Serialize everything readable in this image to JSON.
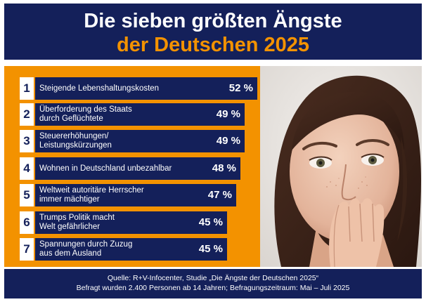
{
  "header": {
    "title_line1": "Die sieben größten Ängste",
    "title_line2": "der Deutschen 2025"
  },
  "chart_data": {
    "type": "bar",
    "categories": [
      "Steigende Lebenshaltungskosten",
      "Überforderung des Staats durch Geflüchtete",
      "Steuererhöhungen/ Leistungskürzungen",
      "Wohnen in Deutschland unbezahlbar",
      "Weltweit autoritäre Herrscher immer mächtiger",
      "Trumps Politik macht Welt gefährlicher",
      "Spannungen durch Zuzug aus dem Ausland"
    ],
    "values": [
      52,
      49,
      49,
      48,
      47,
      45,
      45
    ],
    "ranks": [
      "1",
      "2",
      "3",
      "4",
      "5",
      "6",
      "7"
    ],
    "label_lines": [
      [
        "Steigende Lebenshaltungskosten"
      ],
      [
        "Überforderung des Staats",
        "durch Geflüchtete"
      ],
      [
        "Steuererhöhungen/",
        "Leistungskürzungen"
      ],
      [
        "Wohnen in Deutschland unbezahlbar"
      ],
      [
        "Weltweit autoritäre Herrscher",
        "immer mächtiger"
      ],
      [
        "Trumps Politik macht",
        "Welt gefährlicher"
      ],
      [
        "Spannungen durch Zuzug",
        "aus dem Ausland"
      ]
    ],
    "value_labels": [
      "52 %",
      "49 %",
      "49 %",
      "48 %",
      "47 %",
      "45 %",
      "45 %"
    ],
    "unit": "%"
  },
  "footer": {
    "source": "Quelle: R+V-Infocenter, Studie „Die Ängste der Deutschen 2025“",
    "note": "Befragt wurden 2.400 Personen ab 14 Jahren; Befragungszeitraum: Mai – Juli 2025"
  },
  "colors": {
    "navy": "#14205a",
    "orange": "#f39200",
    "white": "#ffffff"
  }
}
